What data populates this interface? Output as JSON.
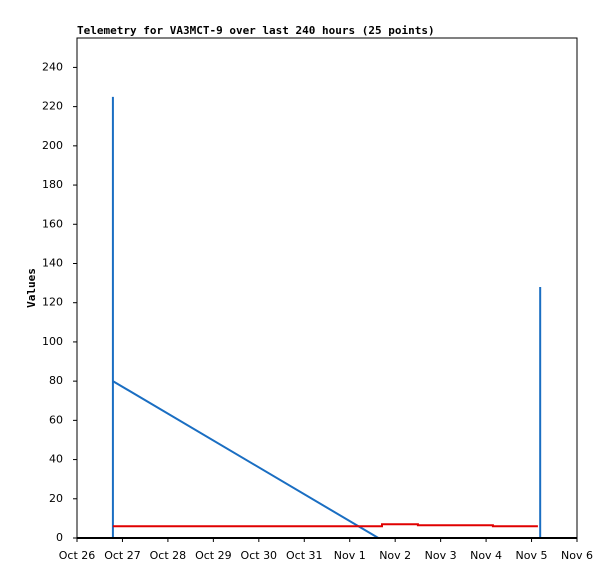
{
  "chart_data": {
    "type": "line",
    "title": "Telemetry for VA3MCT-9 over last 240 hours (25 points)",
    "y_label": "Values",
    "xlim": [
      0,
      11
    ],
    "xticks": [
      {
        "value": 0,
        "label": "Oct 26"
      },
      {
        "value": 1,
        "label": "Oct 27"
      },
      {
        "value": 2,
        "label": "Oct 28"
      },
      {
        "value": 3,
        "label": "Oct 29"
      },
      {
        "value": 4,
        "label": "Oct 30"
      },
      {
        "value": 5,
        "label": "Oct 31"
      },
      {
        "value": 6,
        "label": "Nov 1"
      },
      {
        "value": 7,
        "label": "Nov 2"
      },
      {
        "value": 8,
        "label": "Nov 3"
      },
      {
        "value": 9,
        "label": "Nov 4"
      },
      {
        "value": 10,
        "label": "Nov 5"
      },
      {
        "value": 11,
        "label": "Nov 6"
      }
    ],
    "ylim": [
      0,
      255
    ],
    "yticks": [
      0,
      20,
      40,
      60,
      80,
      100,
      120,
      140,
      160,
      180,
      200,
      220,
      240
    ],
    "series": [
      {
        "color": "#1a6ec2",
        "x": [
          0.79,
          0.79,
          0.79,
          6.63,
          10.19,
          10.19
        ],
        "values": [
          0,
          225,
          80,
          0,
          0,
          128
        ]
      },
      {
        "color": "#e00000",
        "x": [
          0.79,
          6.71,
          6.71,
          7.5,
          7.5,
          9.15,
          9.15,
          10.14
        ],
        "values": [
          6,
          6,
          7,
          7,
          6.5,
          6.5,
          6,
          6
        ]
      }
    ]
  }
}
